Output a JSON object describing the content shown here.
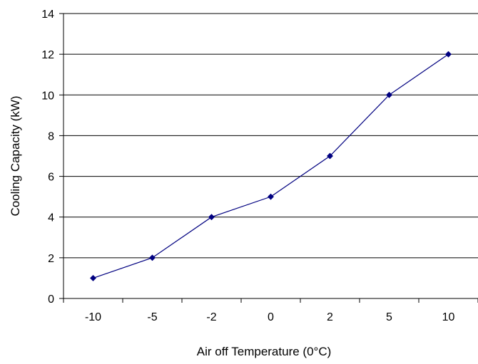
{
  "chart_data": {
    "type": "line",
    "title": "",
    "xlabel": "Air off Temperature (0°C)",
    "ylabel": "Cooling Capacity (kW)",
    "categories": [
      "-10",
      "-5",
      "-2",
      "0",
      "2",
      "5",
      "10"
    ],
    "series": [
      {
        "values": [
          1,
          2,
          4,
          5,
          7,
          10,
          12
        ]
      }
    ],
    "ylim": [
      0,
      14
    ],
    "yticks": [
      "0",
      "2",
      "4",
      "6",
      "8",
      "10",
      "12",
      "14"
    ],
    "grid": "horizontal",
    "legend": "none",
    "colors": {
      "line": "#000080",
      "marker": "#000080",
      "grid": "#000000",
      "axis": "#000000"
    }
  }
}
